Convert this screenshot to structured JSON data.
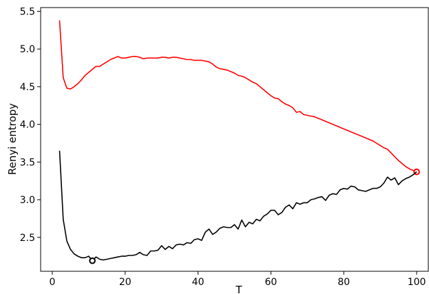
{
  "chart_data": {
    "type": "line",
    "xlabel": "T",
    "ylabel": "Renyi entropy",
    "xlim": [
      -3.2,
      103.2
    ],
    "ylim": [
      2.05,
      5.55
    ],
    "xticks": [
      0,
      20,
      40,
      60,
      80,
      100
    ],
    "yticks": [
      2.5,
      3.0,
      3.5,
      4.0,
      4.5,
      5.0,
      5.5
    ],
    "grid": false,
    "series": [
      {
        "color": "#ff0000",
        "points": [
          [
            2,
            5.38
          ],
          [
            3,
            4.62
          ],
          [
            4,
            4.48
          ],
          [
            5,
            4.47
          ],
          [
            6,
            4.5
          ],
          [
            7,
            4.54
          ],
          [
            8,
            4.59
          ],
          [
            9,
            4.65
          ],
          [
            10,
            4.69
          ],
          [
            11,
            4.73
          ],
          [
            12,
            4.77
          ],
          [
            13,
            4.77
          ],
          [
            14,
            4.8
          ],
          [
            15,
            4.83
          ],
          [
            16,
            4.86
          ],
          [
            17,
            4.88
          ],
          [
            18,
            4.9
          ],
          [
            19,
            4.88
          ],
          [
            20,
            4.88
          ],
          [
            21,
            4.89
          ],
          [
            22,
            4.9
          ],
          [
            23,
            4.9
          ],
          [
            24,
            4.89
          ],
          [
            25,
            4.87
          ],
          [
            26,
            4.88
          ],
          [
            27,
            4.88
          ],
          [
            28,
            4.88
          ],
          [
            29,
            4.88
          ],
          [
            30,
            4.89
          ],
          [
            31,
            4.89
          ],
          [
            32,
            4.88
          ],
          [
            33,
            4.89
          ],
          [
            34,
            4.89
          ],
          [
            35,
            4.88
          ],
          [
            36,
            4.87
          ],
          [
            37,
            4.86
          ],
          [
            38,
            4.86
          ],
          [
            39,
            4.85
          ],
          [
            40,
            4.85
          ],
          [
            41,
            4.85
          ],
          [
            42,
            4.84
          ],
          [
            43,
            4.83
          ],
          [
            44,
            4.8
          ],
          [
            45,
            4.76
          ],
          [
            46,
            4.74
          ],
          [
            47,
            4.73
          ],
          [
            48,
            4.72
          ],
          [
            49,
            4.7
          ],
          [
            50,
            4.68
          ],
          [
            51,
            4.65
          ],
          [
            52,
            4.64
          ],
          [
            53,
            4.62
          ],
          [
            54,
            4.59
          ],
          [
            55,
            4.56
          ],
          [
            56,
            4.54
          ],
          [
            57,
            4.5
          ],
          [
            58,
            4.46
          ],
          [
            59,
            4.42
          ],
          [
            60,
            4.38
          ],
          [
            61,
            4.35
          ],
          [
            62,
            4.34
          ],
          [
            63,
            4.3
          ],
          [
            64,
            4.27
          ],
          [
            65,
            4.25
          ],
          [
            66,
            4.22
          ],
          [
            67,
            4.16
          ],
          [
            68,
            4.17
          ],
          [
            69,
            4.13
          ],
          [
            70,
            4.12
          ],
          [
            71,
            4.11
          ],
          [
            72,
            4.1
          ],
          [
            73,
            4.08
          ],
          [
            74,
            4.06
          ],
          [
            75,
            4.04
          ],
          [
            76,
            4.02
          ],
          [
            77,
            4.0
          ],
          [
            78,
            3.98
          ],
          [
            79,
            3.96
          ],
          [
            80,
            3.94
          ],
          [
            81,
            3.92
          ],
          [
            82,
            3.9
          ],
          [
            83,
            3.88
          ],
          [
            84,
            3.86
          ],
          [
            85,
            3.84
          ],
          [
            86,
            3.82
          ],
          [
            87,
            3.8
          ],
          [
            88,
            3.78
          ],
          [
            89,
            3.75
          ],
          [
            90,
            3.72
          ],
          [
            91,
            3.69
          ],
          [
            92,
            3.67
          ],
          [
            93,
            3.62
          ],
          [
            94,
            3.57
          ],
          [
            95,
            3.52
          ],
          [
            96,
            3.48
          ],
          [
            97,
            3.44
          ],
          [
            98,
            3.41
          ],
          [
            99,
            3.39
          ],
          [
            100,
            3.37
          ]
        ],
        "marker": {
          "x": 100,
          "y": 3.37
        }
      },
      {
        "color": "#000000",
        "points": [
          [
            2,
            3.65
          ],
          [
            3,
            2.74
          ],
          [
            4,
            2.45
          ],
          [
            5,
            2.34
          ],
          [
            6,
            2.28
          ],
          [
            7,
            2.25
          ],
          [
            8,
            2.23
          ],
          [
            9,
            2.23
          ],
          [
            10,
            2.25
          ],
          [
            11,
            2.19
          ],
          [
            12,
            2.24
          ],
          [
            13,
            2.21
          ],
          [
            14,
            2.2
          ],
          [
            15,
            2.21
          ],
          [
            16,
            2.22
          ],
          [
            17,
            2.23
          ],
          [
            18,
            2.24
          ],
          [
            19,
            2.25
          ],
          [
            20,
            2.25
          ],
          [
            21,
            2.26
          ],
          [
            22,
            2.26
          ],
          [
            23,
            2.27
          ],
          [
            24,
            2.3
          ],
          [
            25,
            2.27
          ],
          [
            26,
            2.26
          ],
          [
            27,
            2.32
          ],
          [
            28,
            2.32
          ],
          [
            29,
            2.33
          ],
          [
            30,
            2.39
          ],
          [
            31,
            2.34
          ],
          [
            32,
            2.38
          ],
          [
            33,
            2.35
          ],
          [
            34,
            2.4
          ],
          [
            35,
            2.41
          ],
          [
            36,
            2.4
          ],
          [
            37,
            2.43
          ],
          [
            38,
            2.42
          ],
          [
            39,
            2.47
          ],
          [
            40,
            2.48
          ],
          [
            41,
            2.46
          ],
          [
            42,
            2.57
          ],
          [
            43,
            2.61
          ],
          [
            44,
            2.54
          ],
          [
            45,
            2.57
          ],
          [
            46,
            2.62
          ],
          [
            47,
            2.64
          ],
          [
            48,
            2.63
          ],
          [
            49,
            2.63
          ],
          [
            50,
            2.67
          ],
          [
            51,
            2.61
          ],
          [
            52,
            2.73
          ],
          [
            53,
            2.64
          ],
          [
            54,
            2.7
          ],
          [
            55,
            2.68
          ],
          [
            56,
            2.74
          ],
          [
            57,
            2.72
          ],
          [
            58,
            2.78
          ],
          [
            59,
            2.81
          ],
          [
            60,
            2.86
          ],
          [
            61,
            2.86
          ],
          [
            62,
            2.8
          ],
          [
            63,
            2.83
          ],
          [
            64,
            2.9
          ],
          [
            65,
            2.93
          ],
          [
            66,
            2.88
          ],
          [
            67,
            2.96
          ],
          [
            68,
            2.94
          ],
          [
            69,
            2.96
          ],
          [
            70,
            2.96
          ],
          [
            71,
            3.0
          ],
          [
            72,
            3.01
          ],
          [
            73,
            3.03
          ],
          [
            74,
            3.04
          ],
          [
            75,
            2.99
          ],
          [
            76,
            3.06
          ],
          [
            77,
            3.08
          ],
          [
            78,
            3.07
          ],
          [
            79,
            3.13
          ],
          [
            80,
            3.15
          ],
          [
            81,
            3.14
          ],
          [
            82,
            3.18
          ],
          [
            83,
            3.17
          ],
          [
            84,
            3.13
          ],
          [
            85,
            3.12
          ],
          [
            86,
            3.11
          ],
          [
            87,
            3.13
          ],
          [
            88,
            3.15
          ],
          [
            89,
            3.15
          ],
          [
            90,
            3.17
          ],
          [
            91,
            3.22
          ],
          [
            92,
            3.3
          ],
          [
            93,
            3.26
          ],
          [
            94,
            3.29
          ],
          [
            95,
            3.2
          ],
          [
            96,
            3.25
          ],
          [
            97,
            3.28
          ],
          [
            98,
            3.3
          ],
          [
            99,
            3.33
          ],
          [
            100,
            3.37
          ]
        ],
        "marker": {
          "x": 11,
          "y": 2.19
        }
      }
    ]
  }
}
